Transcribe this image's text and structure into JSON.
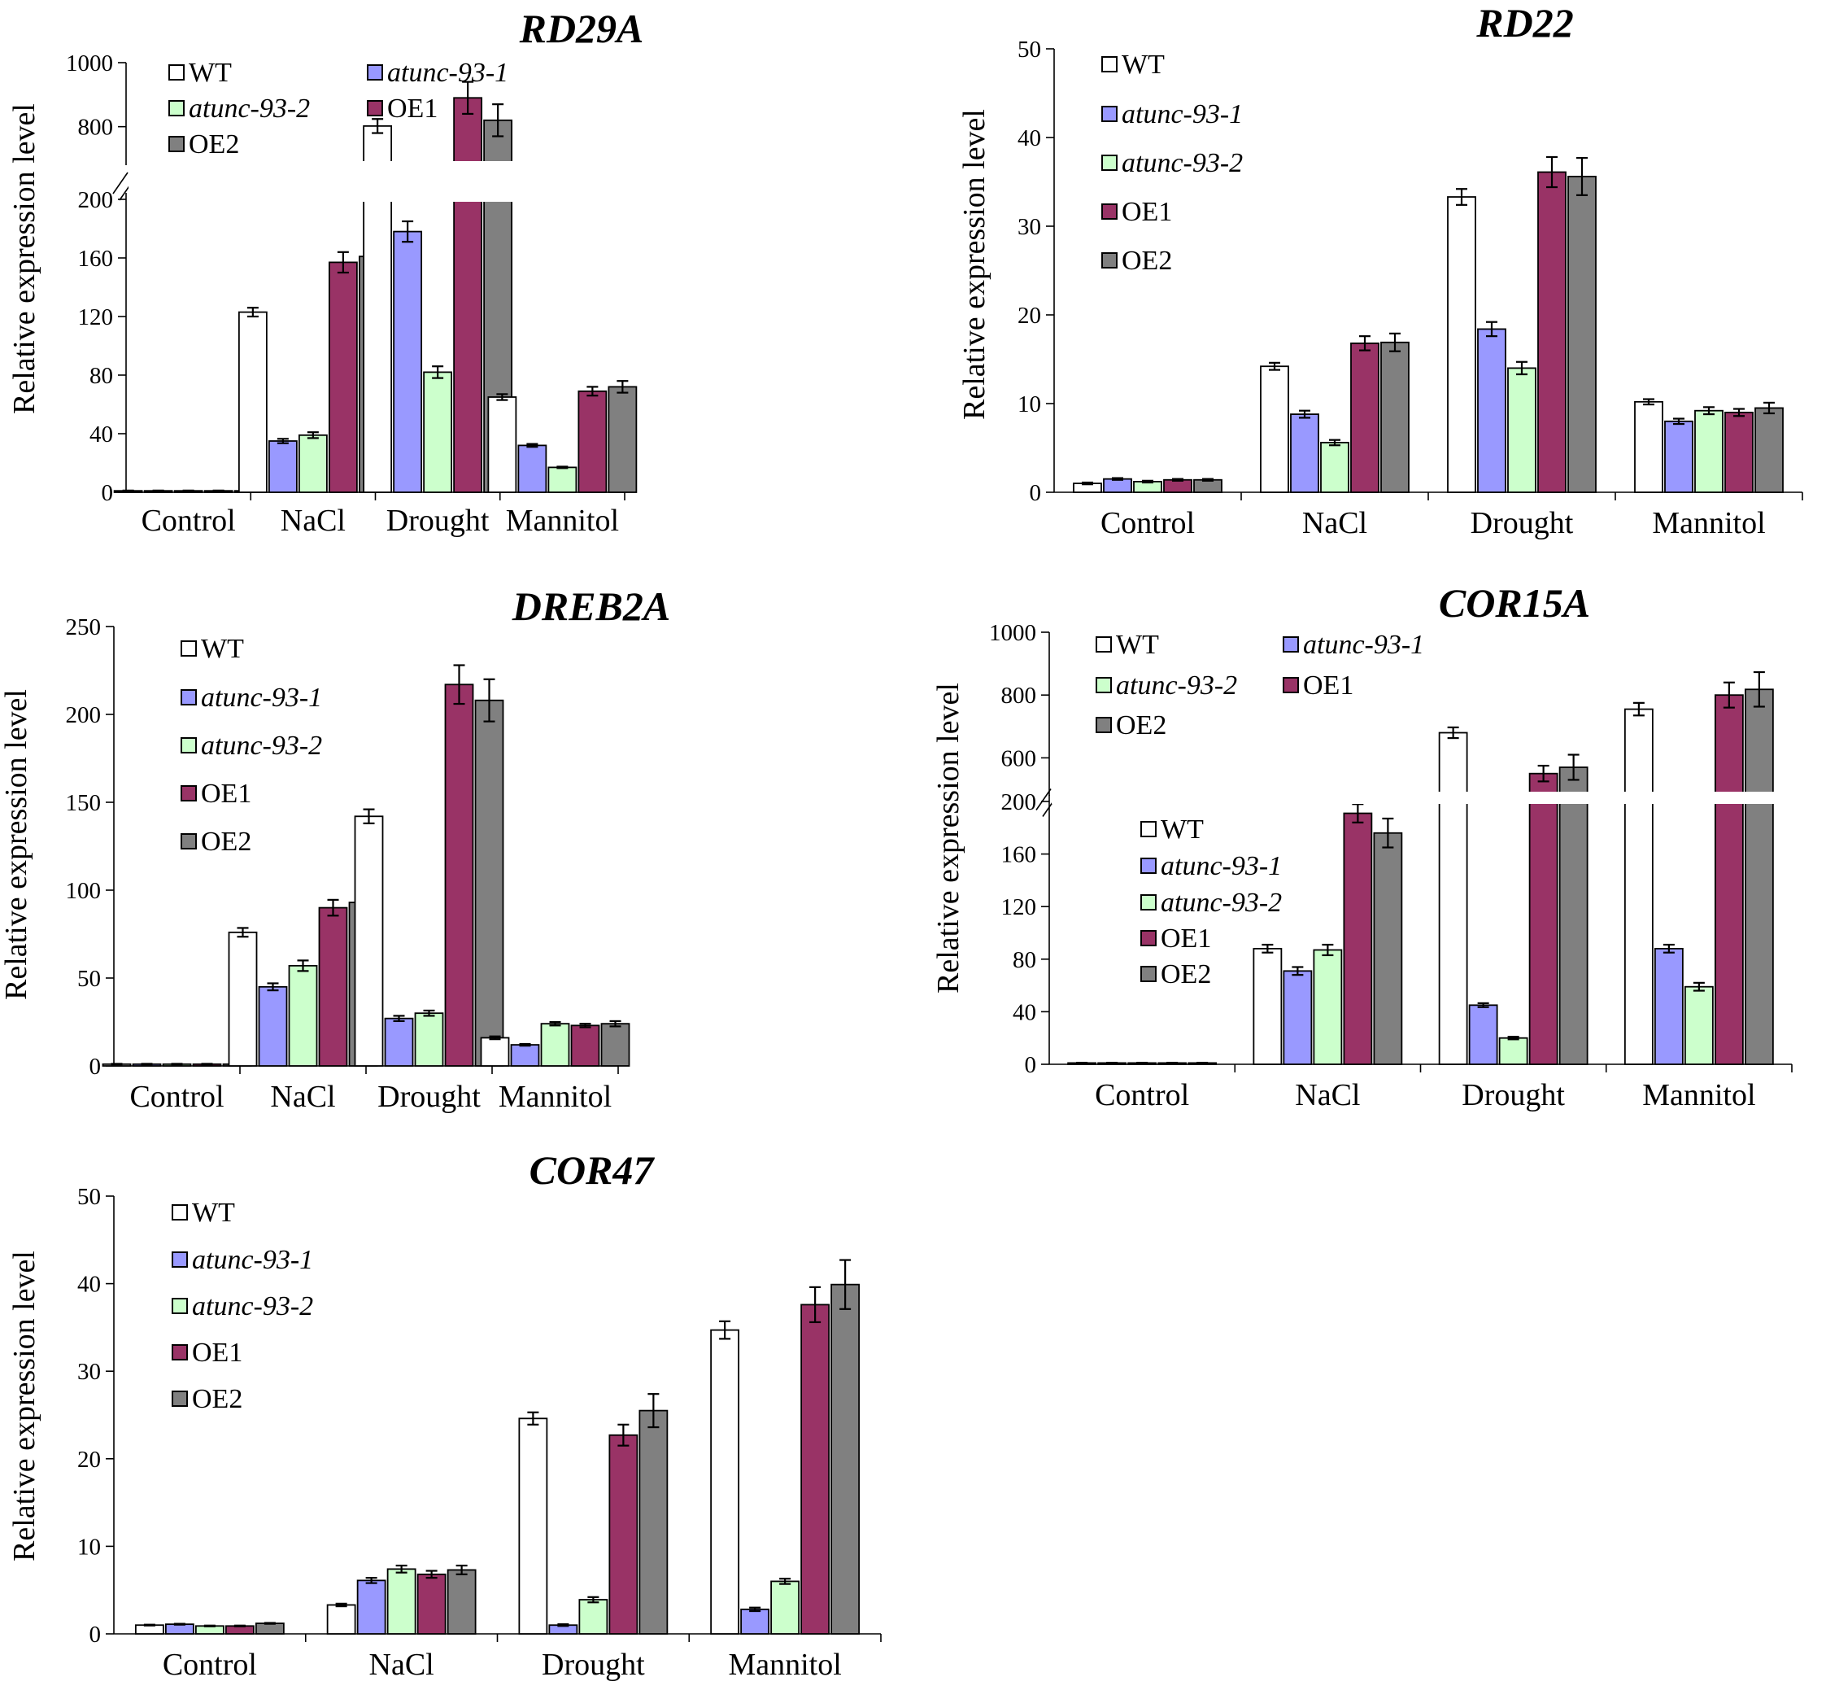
{
  "colors": {
    "WT": "#ffffff",
    "atunc-93-1": "#9999ff",
    "atunc-93-2": "#ccffcc",
    "OE1": "#993366",
    "OE2": "#808080",
    "stroke": "#000000"
  },
  "chart_data": [
    {
      "id": "RD29A",
      "type": "bar",
      "title": "RD29A",
      "ylabel": "Relative expression level",
      "xlabel": "",
      "categories": [
        "Control",
        "NaCl",
        "Drought",
        "Mannitol"
      ],
      "broken_axis": true,
      "ylim_lower": [
        0,
        200
      ],
      "ylim_upper": [
        700,
        1000
      ],
      "yticks_lower": [
        "0",
        "40",
        "80",
        "120",
        "160",
        "200"
      ],
      "yticks_upper": [
        "800",
        "1000"
      ],
      "legend": [
        {
          "label": "WT",
          "italic": false
        },
        {
          "label": "atunc-93-1",
          "italic": true
        },
        {
          "label": "atunc-93-2",
          "italic": true
        },
        {
          "label": "OE1",
          "italic": false
        },
        {
          "label": "OE2",
          "italic": false
        }
      ],
      "series": [
        {
          "name": "WT",
          "values": [
            1,
            123,
            802,
            65
          ],
          "errors": [
            0.2,
            3,
            22,
            2
          ]
        },
        {
          "name": "atunc-93-1",
          "values": [
            1,
            35,
            178,
            32
          ],
          "errors": [
            0.2,
            1.5,
            7,
            1
          ]
        },
        {
          "name": "atunc-93-2",
          "values": [
            1,
            39,
            82,
            17
          ],
          "errors": [
            0.2,
            2,
            4,
            0.5
          ]
        },
        {
          "name": "OE1",
          "values": [
            1,
            157,
            890,
            69
          ],
          "errors": [
            0.2,
            7,
            50,
            3
          ]
        },
        {
          "name": "OE2",
          "values": [
            1,
            161,
            820,
            72
          ],
          "errors": [
            0.2,
            10,
            50,
            4
          ]
        }
      ]
    },
    {
      "id": "RD22",
      "type": "bar",
      "title": "RD22",
      "ylabel": "Relative expression level",
      "xlabel": "",
      "categories": [
        "Control",
        "NaCl",
        "Drought",
        "Mannitol"
      ],
      "ylim": [
        0,
        50
      ],
      "yticks": [
        "0",
        "10",
        "20",
        "30",
        "40",
        "50"
      ],
      "legend": [
        {
          "label": "WT",
          "italic": false
        },
        {
          "label": "atunc-93-1",
          "italic": true
        },
        {
          "label": "atunc-93-2",
          "italic": true
        },
        {
          "label": "OE1",
          "italic": false
        },
        {
          "label": "OE2",
          "italic": false
        }
      ],
      "series": [
        {
          "name": "WT",
          "values": [
            1.0,
            14.2,
            33.3,
            10.2
          ],
          "errors": [
            0.1,
            0.4,
            0.9,
            0.3
          ]
        },
        {
          "name": "atunc-93-1",
          "values": [
            1.5,
            8.8,
            18.4,
            8.0
          ],
          "errors": [
            0.1,
            0.4,
            0.8,
            0.3
          ]
        },
        {
          "name": "atunc-93-2",
          "values": [
            1.2,
            5.6,
            14.0,
            9.2
          ],
          "errors": [
            0.1,
            0.3,
            0.7,
            0.4
          ]
        },
        {
          "name": "OE1",
          "values": [
            1.4,
            16.8,
            36.1,
            9.0
          ],
          "errors": [
            0.1,
            0.8,
            1.7,
            0.4
          ]
        },
        {
          "name": "OE2",
          "values": [
            1.4,
            16.9,
            35.6,
            9.5
          ],
          "errors": [
            0.1,
            1.0,
            2.1,
            0.6
          ]
        }
      ]
    },
    {
      "id": "DREB2A",
      "type": "bar",
      "title": "DREB2A",
      "ylabel": "Relative expression level",
      "xlabel": "",
      "categories": [
        "Control",
        "NaCl",
        "Drought",
        "Mannitol"
      ],
      "ylim": [
        0,
        250
      ],
      "yticks": [
        "0",
        "50",
        "100",
        "150",
        "200",
        "250"
      ],
      "legend": [
        {
          "label": "WT",
          "italic": false
        },
        {
          "label": "atunc-93-1",
          "italic": true
        },
        {
          "label": "atunc-93-2",
          "italic": true
        },
        {
          "label": "OE1",
          "italic": false
        },
        {
          "label": "OE2",
          "italic": false
        }
      ],
      "series": [
        {
          "name": "WT",
          "values": [
            1,
            76,
            142,
            16
          ],
          "errors": [
            0.2,
            2.5,
            4,
            0.8
          ]
        },
        {
          "name": "atunc-93-1",
          "values": [
            1,
            45,
            27,
            12
          ],
          "errors": [
            0.2,
            2,
            1.5,
            0.5
          ]
        },
        {
          "name": "atunc-93-2",
          "values": [
            1,
            57,
            30,
            24
          ],
          "errors": [
            0.2,
            3,
            1.5,
            1
          ]
        },
        {
          "name": "OE1",
          "values": [
            1,
            90,
            217,
            23
          ],
          "errors": [
            0.2,
            4.5,
            11,
            1
          ]
        },
        {
          "name": "OE2",
          "values": [
            1,
            93,
            208,
            24
          ],
          "errors": [
            0.2,
            5.5,
            12,
            1.5
          ]
        }
      ]
    },
    {
      "id": "COR15A",
      "type": "bar",
      "title": "COR15A",
      "ylabel": "Relative expression level",
      "xlabel": "",
      "categories": [
        "Control",
        "NaCl",
        "Drought",
        "Mannitol"
      ],
      "broken_axis": true,
      "ylim_lower": [
        0,
        200
      ],
      "ylim_upper": [
        500,
        1000
      ],
      "yticks_lower": [
        "0",
        "40",
        "80",
        "120",
        "160",
        "200"
      ],
      "yticks_upper": [
        "600",
        "800",
        "1000"
      ],
      "legend": [
        {
          "label": "WT",
          "italic": false
        },
        {
          "label": "atunc-93-1",
          "italic": true
        },
        {
          "label": "atunc-93-2",
          "italic": true
        },
        {
          "label": "OE1",
          "italic": false
        },
        {
          "label": "OE2",
          "italic": false
        }
      ],
      "legend2": [
        {
          "label": "WT",
          "italic": false
        },
        {
          "label": "atunc-93-1",
          "italic": true
        },
        {
          "label": "atunc-93-2",
          "italic": true
        },
        {
          "label": "OE1",
          "italic": false
        },
        {
          "label": "OE2",
          "italic": false
        }
      ],
      "series": [
        {
          "name": "WT",
          "values": [
            1,
            88,
            680,
            755
          ],
          "errors": [
            0.2,
            3,
            17,
            20
          ]
        },
        {
          "name": "atunc-93-1",
          "values": [
            1,
            71,
            45,
            88
          ],
          "errors": [
            0.2,
            3,
            1.5,
            3
          ]
        },
        {
          "name": "atunc-93-2",
          "values": [
            1,
            87,
            20,
            59
          ],
          "errors": [
            0.2,
            4,
            1,
            3
          ]
        },
        {
          "name": "OE1",
          "values": [
            1,
            191,
            550,
            800
          ],
          "errors": [
            0.2,
            7,
            25,
            40
          ]
        },
        {
          "name": "OE2",
          "values": [
            1,
            176,
            570,
            818
          ],
          "errors": [
            0.2,
            11,
            40,
            55
          ]
        }
      ]
    },
    {
      "id": "COR47",
      "type": "bar",
      "title": "COR47",
      "ylabel": "Relative expression level",
      "xlabel": "",
      "categories": [
        "Control",
        "NaCl",
        "Drought",
        "Mannitol"
      ],
      "ylim": [
        0,
        50
      ],
      "yticks": [
        "0",
        "10",
        "20",
        "30",
        "40",
        "50"
      ],
      "legend": [
        {
          "label": "WT",
          "italic": false
        },
        {
          "label": "atunc-93-1",
          "italic": true
        },
        {
          "label": "atunc-93-2",
          "italic": true
        },
        {
          "label": "OE1",
          "italic": false
        },
        {
          "label": "OE2",
          "italic": false
        }
      ],
      "series": [
        {
          "name": "WT",
          "values": [
            1.0,
            3.3,
            24.6,
            34.7
          ],
          "errors": [
            0.05,
            0.15,
            0.7,
            1.0
          ]
        },
        {
          "name": "atunc-93-1",
          "values": [
            1.1,
            6.1,
            1.0,
            2.8
          ],
          "errors": [
            0.05,
            0.3,
            0.1,
            0.2
          ]
        },
        {
          "name": "atunc-93-2",
          "values": [
            0.9,
            7.4,
            3.9,
            6.0
          ],
          "errors": [
            0.05,
            0.4,
            0.3,
            0.3
          ]
        },
        {
          "name": "OE1",
          "values": [
            0.9,
            6.8,
            22.7,
            37.6
          ],
          "errors": [
            0.05,
            0.4,
            1.2,
            2.0
          ]
        },
        {
          "name": "OE2",
          "values": [
            1.2,
            7.3,
            25.5,
            39.9
          ],
          "errors": [
            0.05,
            0.5,
            1.9,
            2.8
          ]
        }
      ]
    }
  ]
}
